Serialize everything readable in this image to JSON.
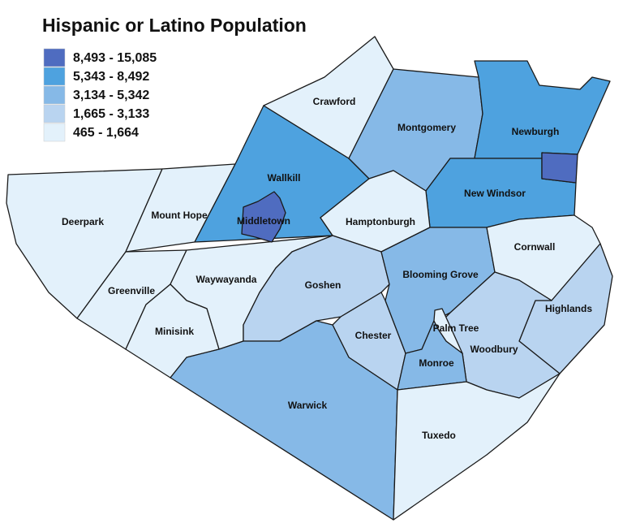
{
  "title": "Hispanic or Latino Population",
  "legend": {
    "items": [
      {
        "label": "8,493 - 15,085",
        "color": "#4f6cc0"
      },
      {
        "label": "5,343 - 8,492",
        "color": "#4ea2df"
      },
      {
        "label": "3,134 - 5,342",
        "color": "#86b9e7"
      },
      {
        "label": "1,665 - 3,133",
        "color": "#b9d4f0"
      },
      {
        "label": "465 - 1,664",
        "color": "#e3f1fb"
      }
    ]
  },
  "regions": [
    {
      "label": "Deerpark",
      "color": "#e3f1fb"
    },
    {
      "label": "Mount Hope",
      "color": "#e3f1fb"
    },
    {
      "label": "Wallkill",
      "color": "#4ea2df"
    },
    {
      "label": "Crawford",
      "color": "#e3f1fb"
    },
    {
      "label": "Montgomery",
      "color": "#86b9e7"
    },
    {
      "label": "Newburgh",
      "color": "#4ea2df"
    },
    {
      "label": "New Windsor",
      "color": "#4ea2df"
    },
    {
      "label": "Hamptonburgh",
      "color": "#e3f1fb"
    },
    {
      "label": "Greenville",
      "color": "#e3f1fb"
    },
    {
      "label": "Waywayanda",
      "color": "#e3f1fb"
    },
    {
      "label": "Minisink",
      "color": "#e3f1fb"
    },
    {
      "label": "Goshen",
      "color": "#b9d4f0"
    },
    {
      "label": "Chester",
      "color": "#b9d4f0"
    },
    {
      "label": "Warwick",
      "color": "#86b9e7"
    },
    {
      "label": "Blooming Grove",
      "color": "#86b9e7"
    },
    {
      "label": "Cornwall",
      "color": "#e3f1fb"
    },
    {
      "label": "Highlands",
      "color": "#b9d4f0"
    },
    {
      "label": "Woodbury",
      "color": "#b9d4f0"
    },
    {
      "label": "Monroe",
      "color": "#86b9e7"
    },
    {
      "label": "Palm Tree",
      "color": "#e3f1fb"
    },
    {
      "label": "Tuxedo",
      "color": "#e3f1fb"
    },
    {
      "label": "Middletown",
      "color": "#4f6cc0"
    }
  ]
}
